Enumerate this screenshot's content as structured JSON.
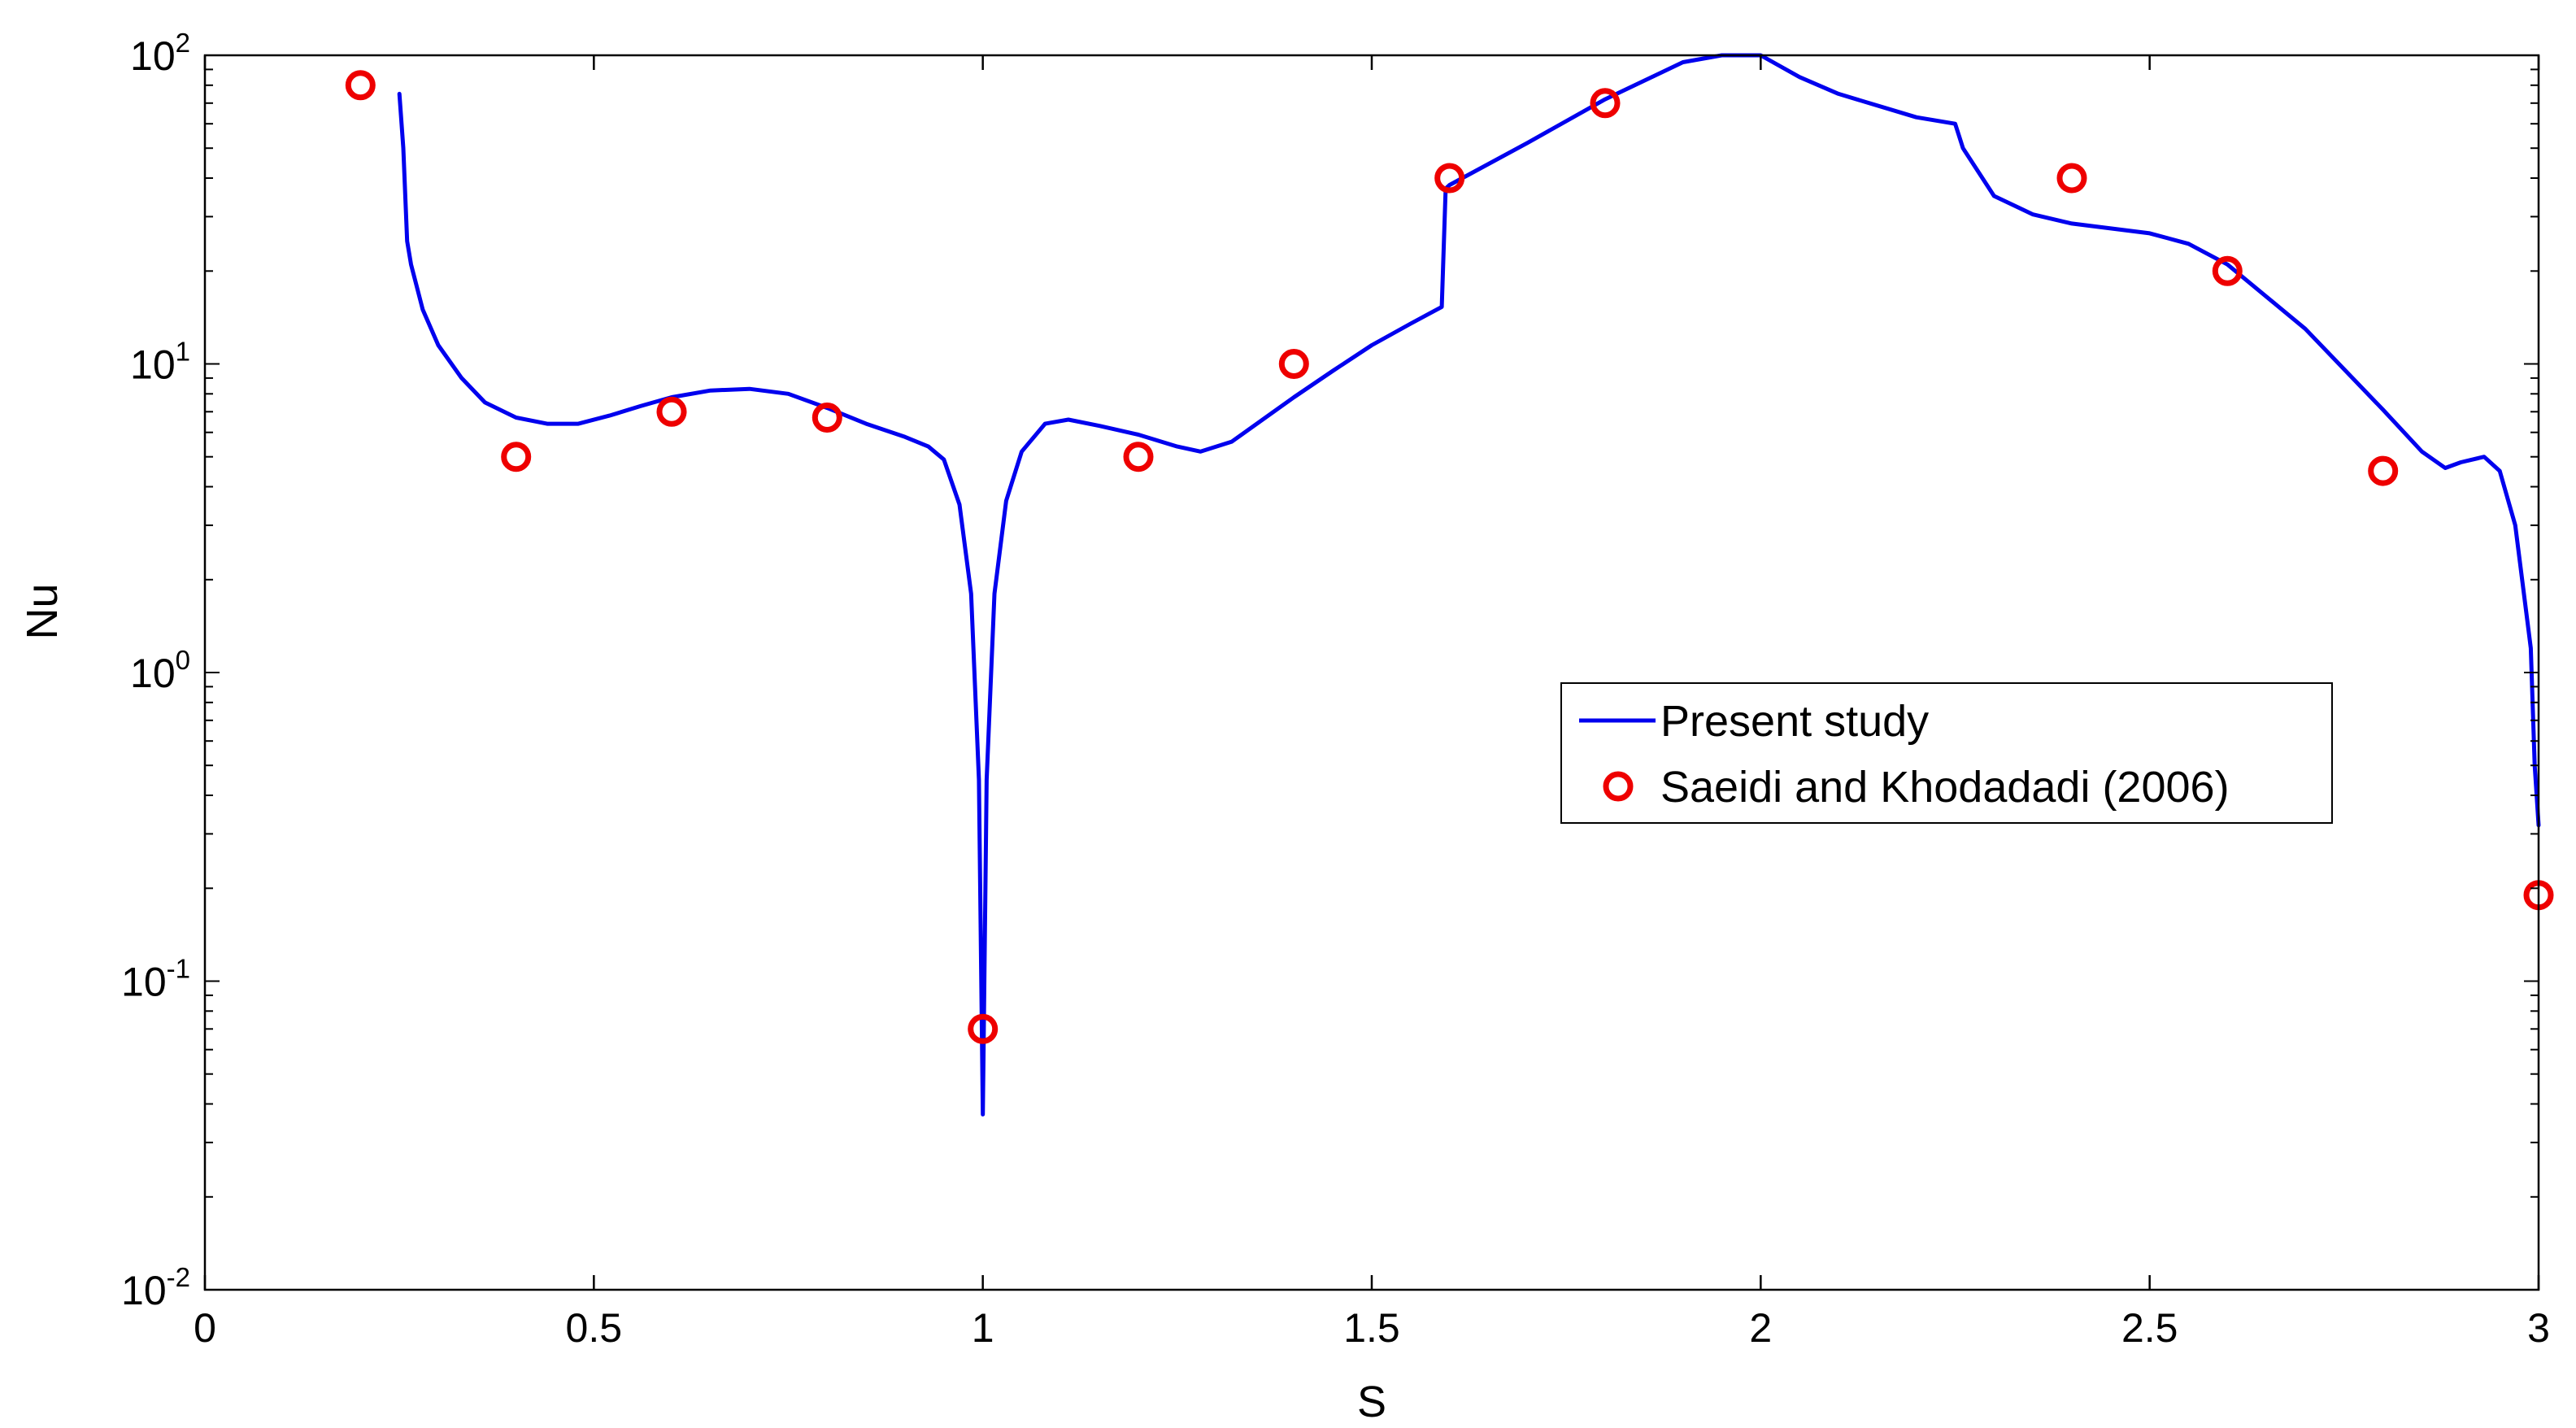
{
  "chart_data": {
    "type": "line",
    "title": "",
    "xlabel": "S",
    "ylabel": "Nu",
    "xlim": [
      0,
      3
    ],
    "ylim": [
      0.01,
      100
    ],
    "yscale": "log",
    "grid": false,
    "legend_position": "center-right",
    "x_ticks": [
      0,
      0.5,
      1,
      1.5,
      2,
      2.5,
      3
    ],
    "x_tick_labels": [
      "0",
      "0.5",
      "1",
      "1.5",
      "2",
      "2.5",
      "3"
    ],
    "y_tick_labels": [
      {
        "base": "10",
        "exp": "-2"
      },
      {
        "base": "10",
        "exp": "-1"
      },
      {
        "base": "10",
        "exp": "0"
      },
      {
        "base": "10",
        "exp": "1"
      },
      {
        "base": "10",
        "exp": "2"
      }
    ],
    "series": [
      {
        "name": "Present study",
        "kind": "line",
        "color": "#0000ee",
        "x": [
          0.25,
          0.255,
          0.26,
          0.265,
          0.28,
          0.3,
          0.33,
          0.36,
          0.4,
          0.44,
          0.48,
          0.52,
          0.56,
          0.6,
          0.65,
          0.7,
          0.75,
          0.8,
          0.85,
          0.9,
          0.93,
          0.95,
          0.97,
          0.985,
          0.995,
          1.0,
          1.005,
          1.015,
          1.03,
          1.05,
          1.08,
          1.11,
          1.15,
          1.2,
          1.25,
          1.28,
          1.32,
          1.4,
          1.45,
          1.5,
          1.55,
          1.59,
          1.595,
          1.6,
          1.7,
          1.8,
          1.9,
          1.95,
          2.0,
          2.05,
          2.1,
          2.2,
          2.25,
          2.26,
          2.3,
          2.35,
          2.4,
          2.5,
          2.55,
          2.6,
          2.7,
          2.8,
          2.85,
          2.88,
          2.9,
          2.93,
          2.95,
          2.97,
          2.99,
          2.995,
          3.0
        ],
        "y": [
          75,
          50,
          25,
          21,
          15,
          11.5,
          9,
          7.5,
          6.7,
          6.4,
          6.4,
          6.8,
          7.3,
          7.8,
          8.2,
          8.3,
          8.0,
          7.2,
          6.4,
          5.8,
          5.4,
          4.9,
          3.5,
          1.8,
          0.45,
          0.037,
          0.45,
          1.8,
          3.6,
          5.2,
          6.4,
          6.6,
          6.3,
          5.9,
          5.4,
          5.2,
          5.6,
          7.8,
          9.5,
          11.5,
          13.5,
          15.3,
          37,
          38,
          52,
          72,
          95,
          105,
          100,
          85,
          75,
          63,
          60,
          50,
          35,
          30.5,
          28.5,
          26.5,
          24.5,
          21,
          13,
          7.1,
          5.2,
          4.6,
          4.8,
          5.0,
          4.5,
          3.0,
          1.2,
          0.5,
          0.32
        ]
      },
      {
        "name": "Saeidi and Khodadadi (2006)",
        "kind": "scatter",
        "marker": "circle-open",
        "color": "#ee0000",
        "x": [
          0.2,
          0.4,
          0.6,
          0.8,
          1.0,
          1.2,
          1.4,
          1.6,
          1.8,
          2.4,
          2.6,
          2.8,
          3.0
        ],
        "y": [
          80,
          5,
          7,
          6.7,
          0.07,
          5,
          10,
          40,
          70,
          40,
          20,
          4.5,
          0.19
        ]
      }
    ]
  }
}
